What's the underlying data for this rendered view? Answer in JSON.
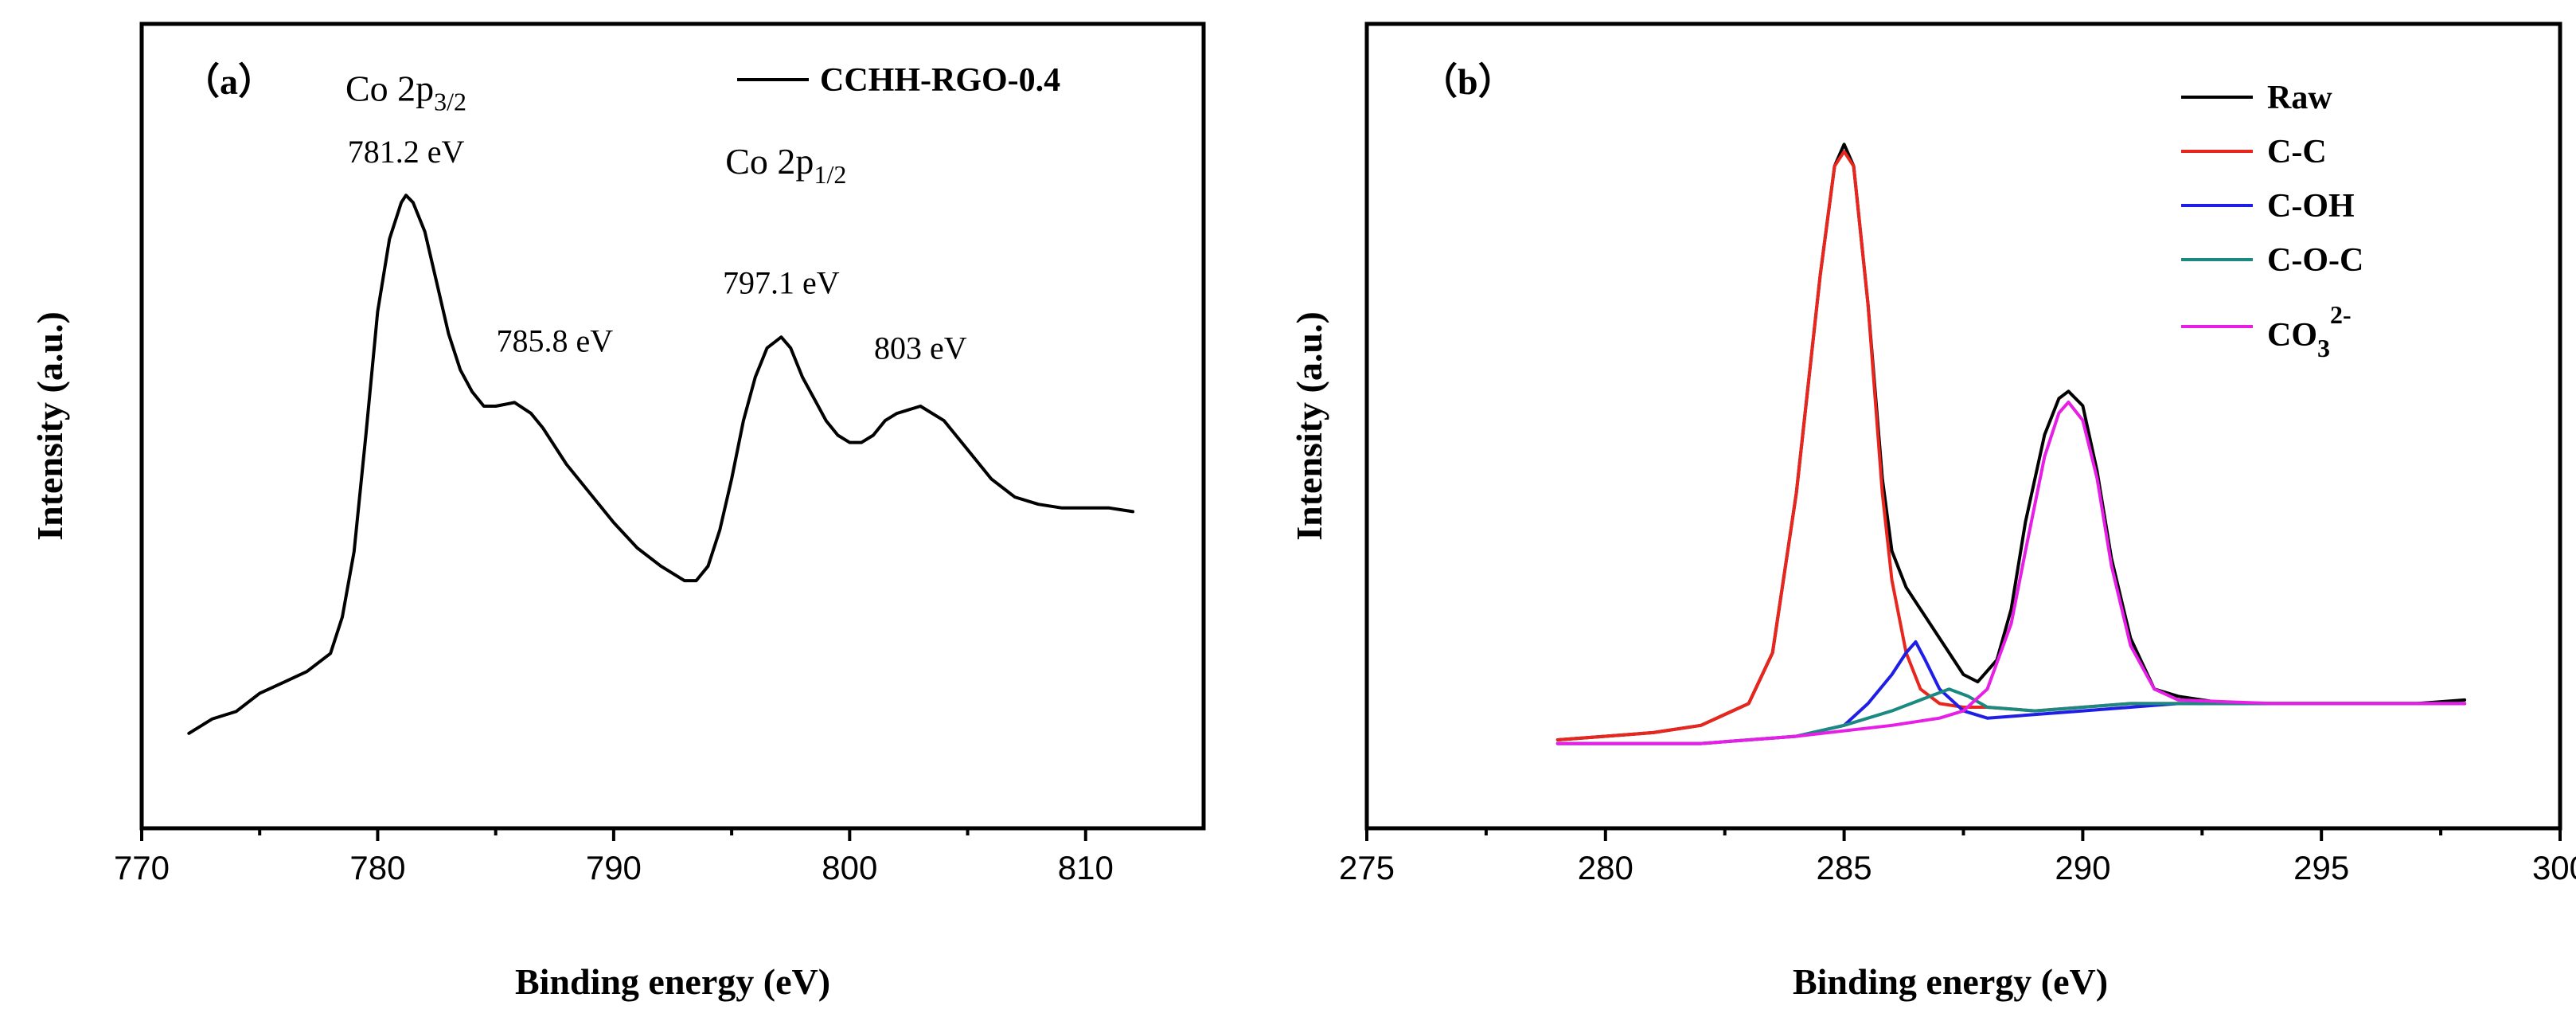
{
  "chart_data": [
    {
      "type": "line",
      "panel_label": "（a）",
      "xlabel": "Binding energy (eV)",
      "ylabel": "Intensity (a.u.)",
      "xlim": [
        770,
        815
      ],
      "ylim": [
        0,
        1
      ],
      "xticks": [
        770,
        780,
        790,
        800,
        810
      ],
      "legend": {
        "position": "top-right",
        "entries": [
          "CCHH-RGO-0.4"
        ]
      },
      "series": [
        {
          "name": "CCHH-RGO-0.4",
          "color": "#000000",
          "x": [
            772,
            773,
            774,
            775,
            776,
            777,
            778,
            778.5,
            779,
            779.5,
            780,
            780.5,
            781,
            781.2,
            781.5,
            782,
            782.5,
            783,
            783.5,
            784,
            784.5,
            785,
            785.8,
            786.5,
            787,
            788,
            789,
            790,
            791,
            792,
            793,
            793.5,
            794,
            794.5,
            795,
            795.5,
            796,
            796.5,
            797.1,
            797.5,
            798,
            798.5,
            799,
            799.5,
            800,
            800.5,
            801,
            801.5,
            802,
            803,
            804,
            805,
            806,
            807,
            808,
            809,
            810,
            811,
            812
          ],
          "values": [
            0.09,
            0.11,
            0.12,
            0.145,
            0.16,
            0.175,
            0.2,
            0.25,
            0.34,
            0.5,
            0.67,
            0.77,
            0.82,
            0.83,
            0.82,
            0.78,
            0.71,
            0.64,
            0.59,
            0.56,
            0.54,
            0.54,
            0.545,
            0.53,
            0.51,
            0.46,
            0.42,
            0.38,
            0.345,
            0.32,
            0.3,
            0.3,
            0.32,
            0.37,
            0.44,
            0.52,
            0.58,
            0.62,
            0.635,
            0.62,
            0.58,
            0.55,
            0.52,
            0.5,
            0.49,
            0.49,
            0.5,
            0.52,
            0.53,
            0.54,
            0.52,
            0.48,
            0.44,
            0.415,
            0.405,
            0.4,
            0.4,
            0.4,
            0.395
          ]
        }
      ],
      "annotations": [
        {
          "type": "peak_label",
          "main": "Co 2p",
          "sub": "3/2",
          "x": 781.2,
          "y": 0.96
        },
        {
          "type": "energy",
          "text": "781.2 eV",
          "x": 781.2,
          "y": 0.875
        },
        {
          "type": "energy",
          "text": "785.8 eV",
          "x": 787.5,
          "y": 0.615
        },
        {
          "type": "peak_label",
          "main": "Co 2p",
          "sub": "1/2",
          "x": 797.3,
          "y": 0.86
        },
        {
          "type": "energy",
          "text": "797.1 eV",
          "x": 797.1,
          "y": 0.695
        },
        {
          "type": "energy",
          "text": "803 eV",
          "x": 803,
          "y": 0.605
        }
      ]
    },
    {
      "type": "line",
      "panel_label": "（b）",
      "xlabel": "Binding energy (eV)",
      "ylabel": "Intensity (a.u.)",
      "xlim": [
        275,
        300
      ],
      "ylim": [
        0,
        1
      ],
      "xticks": [
        275,
        280,
        285,
        290,
        295,
        300
      ],
      "legend": {
        "position": "top-right",
        "entries": [
          "Raw",
          "C-C",
          "C-OH",
          "C-O-C",
          "CO32-"
        ]
      },
      "series": [
        {
          "name": "Raw",
          "color": "#000000",
          "x": [
            279,
            280,
            281,
            282,
            283,
            283.5,
            284,
            284.5,
            284.8,
            285,
            285.2,
            285.5,
            285.8,
            286,
            286.3,
            286.6,
            287,
            287.5,
            287.8,
            288.2,
            288.5,
            288.8,
            289.2,
            289.5,
            289.7,
            290,
            290.3,
            290.6,
            291,
            291.5,
            292,
            293,
            294,
            295,
            296,
            297,
            298
          ],
          "values": [
            0.08,
            0.085,
            0.09,
            0.1,
            0.13,
            0.2,
            0.42,
            0.72,
            0.87,
            0.9,
            0.87,
            0.68,
            0.44,
            0.34,
            0.29,
            0.26,
            0.22,
            0.17,
            0.16,
            0.19,
            0.26,
            0.38,
            0.5,
            0.55,
            0.56,
            0.54,
            0.45,
            0.33,
            0.22,
            0.15,
            0.14,
            0.13,
            0.13,
            0.13,
            0.13,
            0.13,
            0.135
          ]
        },
        {
          "name": "C-C",
          "color": "#e8261e",
          "x": [
            279,
            280,
            281,
            282,
            283,
            283.5,
            284,
            284.5,
            284.8,
            285,
            285.2,
            285.5,
            285.8,
            286,
            286.3,
            286.6,
            287,
            287.5,
            288,
            289,
            290,
            291,
            292,
            293,
            294,
            295,
            296,
            297,
            298
          ],
          "values": [
            0.08,
            0.085,
            0.09,
            0.1,
            0.13,
            0.2,
            0.42,
            0.72,
            0.87,
            0.89,
            0.87,
            0.68,
            0.42,
            0.3,
            0.2,
            0.15,
            0.13,
            0.125,
            0.125,
            0.12,
            0.125,
            0.13,
            0.13,
            0.13,
            0.13,
            0.13,
            0.13,
            0.13,
            0.13
          ]
        },
        {
          "name": "C-OH",
          "color": "#1e1ee6",
          "x": [
            279,
            282,
            284,
            285,
            285.5,
            286,
            286.3,
            286.5,
            286.7,
            287,
            287.5,
            288,
            290,
            292,
            294,
            296,
            298
          ],
          "values": [
            0.075,
            0.075,
            0.085,
            0.1,
            0.13,
            0.17,
            0.2,
            0.215,
            0.19,
            0.15,
            0.12,
            0.11,
            0.12,
            0.13,
            0.13,
            0.13,
            0.13
          ]
        },
        {
          "name": "C-O-C",
          "color": "#1a8a80",
          "x": [
            279,
            282,
            284,
            285,
            286,
            286.8,
            287.2,
            287.6,
            288,
            289,
            290,
            291,
            292,
            294,
            296,
            298
          ],
          "values": [
            0.075,
            0.075,
            0.085,
            0.1,
            0.12,
            0.14,
            0.15,
            0.14,
            0.125,
            0.12,
            0.125,
            0.13,
            0.13,
            0.13,
            0.13,
            0.13
          ]
        },
        {
          "name": "CO32-",
          "color": "#e61ee6",
          "x": [
            279,
            282,
            284,
            286,
            287,
            287.5,
            288,
            288.5,
            288.8,
            289.2,
            289.5,
            289.7,
            290,
            290.3,
            290.6,
            291,
            291.5,
            292,
            294,
            296,
            298
          ],
          "values": [
            0.075,
            0.075,
            0.085,
            0.1,
            0.11,
            0.12,
            0.15,
            0.24,
            0.34,
            0.47,
            0.53,
            0.545,
            0.52,
            0.44,
            0.32,
            0.21,
            0.15,
            0.135,
            0.13,
            0.13,
            0.13
          ]
        }
      ]
    }
  ]
}
